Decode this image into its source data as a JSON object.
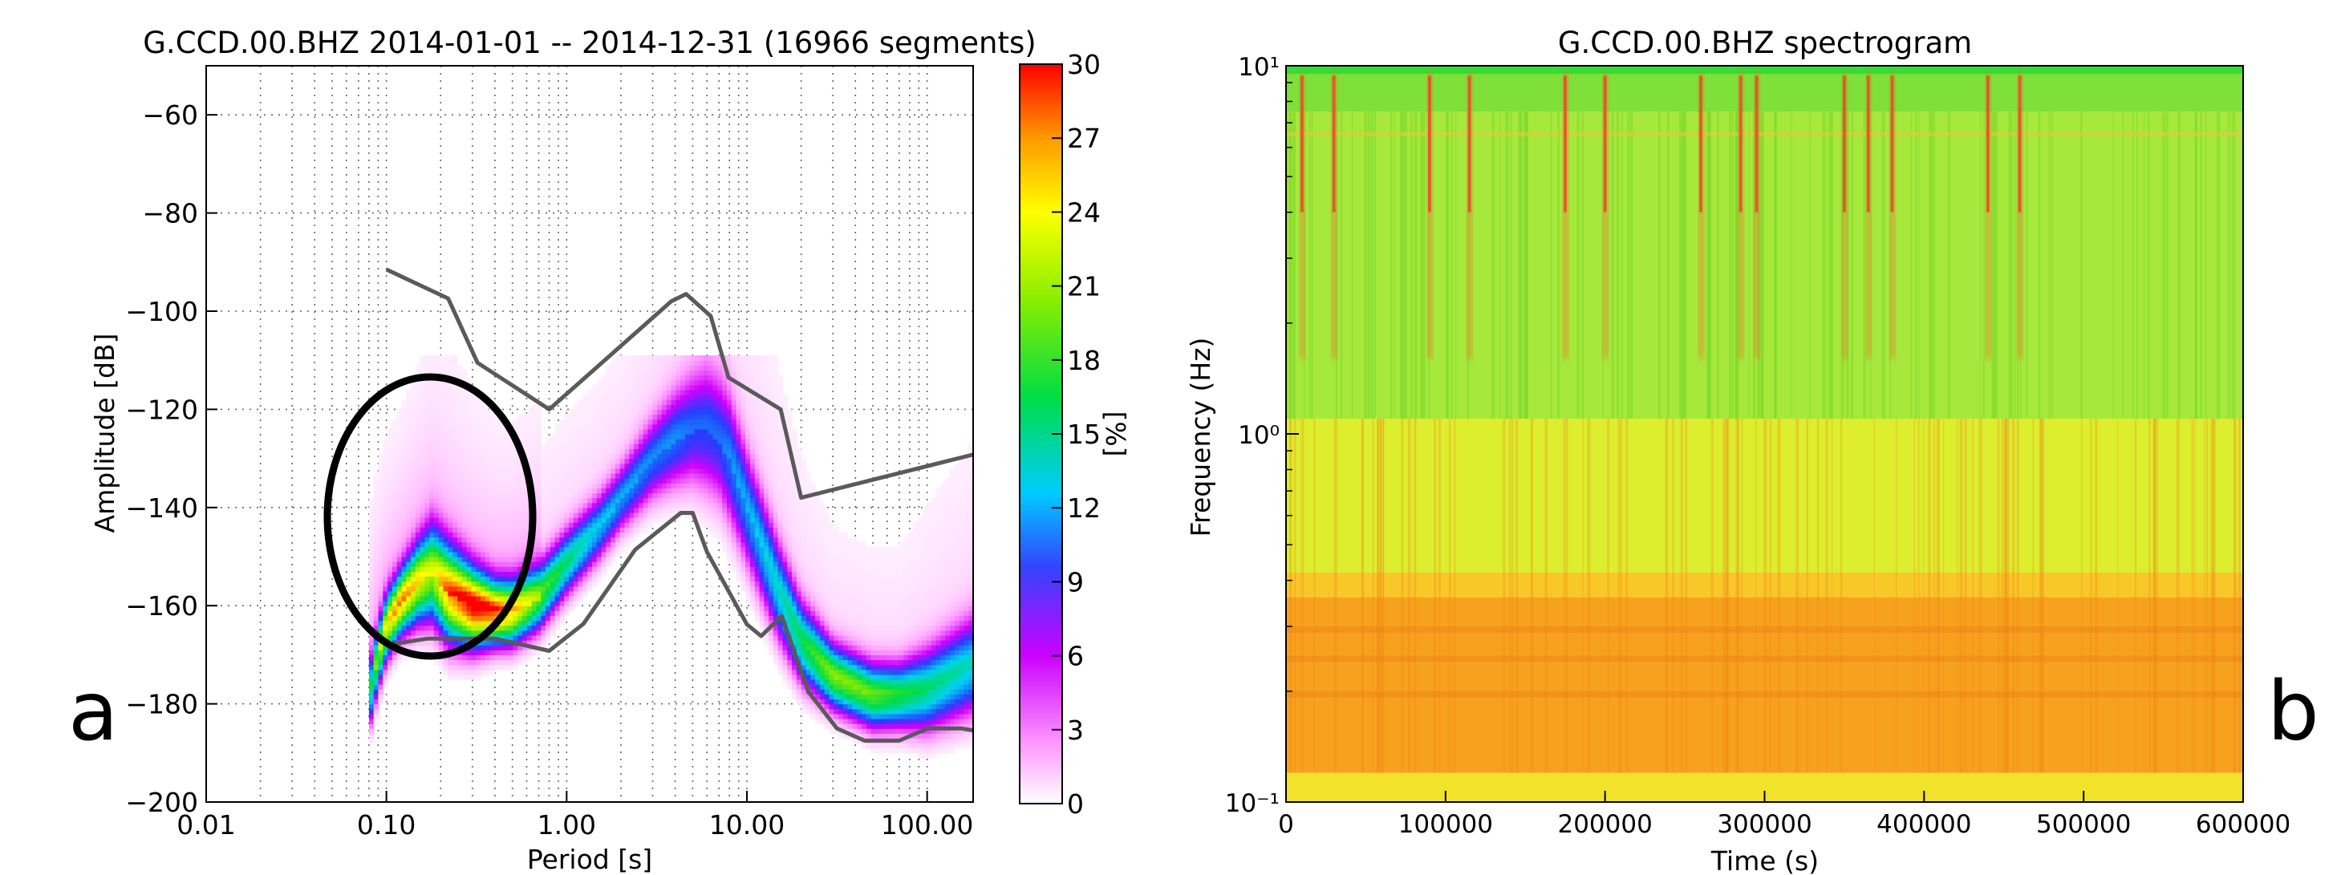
{
  "panel_a": {
    "letter": "a",
    "title": "G.CCD.00.BHZ   2014-01-01 -- 2014-12-31  (16966 segments)",
    "xlabel": "Period [s]",
    "ylabel": "Amplitude [dB]",
    "colorbar_label": "[%]"
  },
  "panel_b": {
    "letter": "b",
    "title": "G.CCD.00.BHZ spectrogram",
    "xlabel": "Time (s)",
    "ylabel": "Frequency (Hz)"
  },
  "chart_data": [
    {
      "type": "heatmap",
      "title": "G.CCD.00.BHZ   2014-01-01 -- 2014-12-31  (16966 segments)",
      "xlabel": "Period [s]",
      "ylabel": "Amplitude [dB]",
      "x_scale": "log",
      "xlim": [
        0.01,
        180
      ],
      "ylim": [
        -200,
        -50
      ],
      "x_tick_values": [
        0.01,
        0.1,
        1,
        10,
        100
      ],
      "x_tick_labels": [
        "0.01",
        "0.10",
        "1.00",
        "10.00",
        "100.00"
      ],
      "y_ticks": [
        -60,
        -80,
        -100,
        -120,
        -140,
        -160,
        -180,
        -200
      ],
      "y_tick_labels": [
        "−60",
        "−80",
        "−100",
        "−120",
        "−140",
        "−160",
        "−180",
        "−200"
      ],
      "grid": true,
      "colorbar": {
        "label": "[%]",
        "range": [
          0,
          30
        ],
        "ticks": [
          0,
          3,
          6,
          9,
          12,
          15,
          18,
          21,
          24,
          27,
          30
        ],
        "tick_labels": [
          "0",
          "3",
          "6",
          "9",
          "12",
          "15",
          "18",
          "21",
          "24",
          "27",
          "30"
        ]
      },
      "mode_curve": {
        "period": [
          0.08,
          0.09,
          0.1,
          0.12,
          0.15,
          0.18,
          0.22,
          0.3,
          0.4,
          0.5,
          0.7,
          1.0,
          1.5,
          2.0,
          3.0,
          4.0,
          5.0,
          6.0,
          7.0,
          8.0,
          10,
          15,
          20,
          30,
          50,
          70,
          100,
          180
        ],
        "amplitude_db": [
          -180,
          -171,
          -165,
          -160,
          -156,
          -154,
          -158,
          -161,
          -162,
          -162,
          -159,
          -152,
          -145,
          -139,
          -131,
          -127,
          -125,
          -125,
          -127,
          -131,
          -141,
          -158,
          -168,
          -175,
          -179,
          -179,
          -178,
          -173
        ],
        "spread_db": [
          4,
          4,
          4,
          4,
          5,
          6,
          6,
          5,
          4,
          4,
          4,
          4,
          4,
          4,
          5,
          6,
          7,
          8,
          8,
          8,
          7,
          6,
          5,
          4,
          4,
          4,
          5,
          6
        ],
        "peak_percent": [
          12,
          18,
          22,
          25,
          22,
          20,
          26,
          30,
          28,
          24,
          18,
          14,
          11,
          10,
          9,
          9,
          8,
          8,
          8,
          9,
          10,
          12,
          15,
          19,
          18,
          16,
          14,
          12
        ]
      },
      "high_noise_model": {
        "period": [
          0.1,
          0.22,
          0.32,
          0.8,
          3.8,
          4.6,
          6.3,
          7.9,
          15.4,
          20,
          354.8
        ],
        "amplitude_db": [
          -91.5,
          -97.4,
          -110.5,
          -120,
          -98,
          -96.5,
          -101,
          -113.5,
          -120,
          -138,
          -126.5
        ]
      },
      "low_noise_model": {
        "period": [
          0.1,
          0.17,
          0.4,
          0.8,
          1.24,
          2.4,
          4.3,
          5,
          6,
          10,
          12,
          15.6,
          21.9,
          31.6,
          45,
          70,
          101,
          154,
          328
        ],
        "amplitude_db": [
          -168,
          -166.7,
          -166.7,
          -169.2,
          -163.7,
          -148.6,
          -141.1,
          -141.1,
          -149,
          -163.8,
          -166.2,
          -162.1,
          -177.5,
          -185,
          -187.5,
          -187.5,
          -185,
          -185,
          -187
        ]
      },
      "annotation": {
        "shape": "ellipse",
        "center_period": 0.17,
        "center_db": -146,
        "note": "high-frequency anomaly region circled"
      }
    },
    {
      "type": "heatmap",
      "title": "G.CCD.00.BHZ spectrogram",
      "xlabel": "Time (s)",
      "ylabel": "Frequency (Hz)",
      "y_scale": "log",
      "xlim": [
        0,
        600000
      ],
      "ylim": [
        0.1,
        10
      ],
      "x_ticks": [
        0,
        100000,
        200000,
        300000,
        400000,
        500000,
        600000
      ],
      "x_tick_labels": [
        "0",
        "100000",
        "200000",
        "300000",
        "400000",
        "500000",
        "600000"
      ],
      "y_ticks": [
        0.1,
        1,
        10
      ],
      "y_tick_labels": [
        "10⁻¹",
        "10⁰",
        "10¹"
      ],
      "bands": [
        {
          "f_low": 7.5,
          "f_high": 10,
          "color": "#7ee038"
        },
        {
          "f_low": 1.1,
          "f_high": 7.5,
          "color": "#a6e83c"
        },
        {
          "f_low": 0.42,
          "f_high": 1.1,
          "color": "#dcee2e"
        },
        {
          "f_low": 0.36,
          "f_high": 0.42,
          "color": "#f8c828"
        },
        {
          "f_low": 0.12,
          "f_high": 0.36,
          "color": "#f7a21e"
        },
        {
          "f_low": 0.1,
          "f_high": 0.12,
          "color": "#f2e22a"
        }
      ],
      "burst_times_s": [
        10000,
        30000,
        90000,
        115000,
        175000,
        200000,
        260000,
        285000,
        295000,
        350000,
        365000,
        380000,
        440000,
        460000
      ]
    }
  ]
}
